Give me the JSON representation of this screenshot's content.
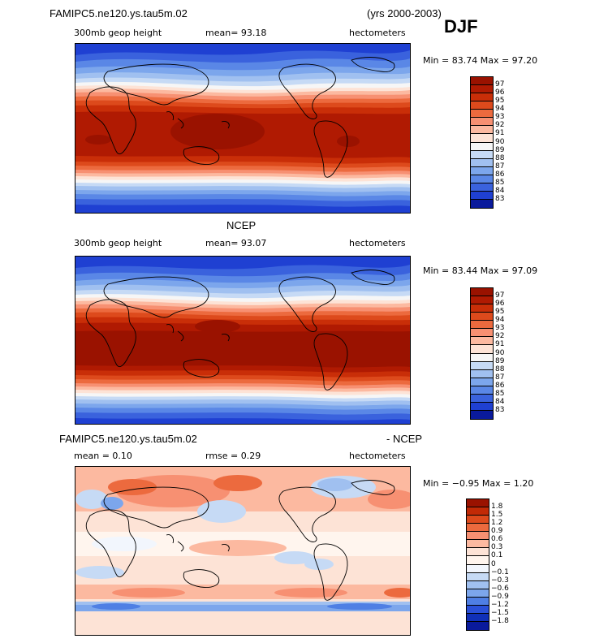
{
  "header": {
    "model": "FAMIPC5.ne120.ys.tau5m.02",
    "years": "(yrs 2000-2003)",
    "season": "DJF"
  },
  "panels": [
    {
      "title": "",
      "field": "300mb geop height",
      "stat1": "mean=  93.18",
      "stat2": "",
      "units": "hectometers",
      "minmax": "Min =  83.74 Max =  97.20",
      "legend": [
        "97",
        "96",
        "95",
        "94",
        "93",
        "92",
        "91",
        "90",
        "89",
        "88",
        "87",
        "86",
        "85",
        "84",
        "83"
      ],
      "colors": [
        "#9a1200",
        "#b01a02",
        "#c92e08",
        "#dd4a1c",
        "#ec6a3e",
        "#f79072",
        "#fcb9a0",
        "#fde3d6",
        "#f6f6f6",
        "#c6daf5",
        "#a0c0f0",
        "#7ca6ec",
        "#5a87e6",
        "#3a62dd",
        "#1f40d2",
        "#0a1a9c"
      ]
    },
    {
      "title": "NCEP",
      "field": "300mb geop height",
      "stat1": "mean=  93.07",
      "stat2": "",
      "units": "hectometers",
      "minmax": "Min =  83.44 Max =  97.09",
      "legend": [
        "97",
        "96",
        "95",
        "94",
        "93",
        "92",
        "91",
        "90",
        "89",
        "88",
        "87",
        "86",
        "85",
        "84",
        "83"
      ],
      "colors": [
        "#9a1200",
        "#b01a02",
        "#c92e08",
        "#dd4a1c",
        "#ec6a3e",
        "#f79072",
        "#fcb9a0",
        "#fde3d6",
        "#f6f6f6",
        "#c6daf5",
        "#a0c0f0",
        "#7ca6ec",
        "#5a87e6",
        "#3a62dd",
        "#1f40d2",
        "#0a1a9c"
      ]
    },
    {
      "title": "FAMIPC5.ne120.ys.tau5m.02",
      "title_right": "- NCEP",
      "field": "",
      "stat1": "mean =    0.10",
      "stat2": "rmse =    0.29",
      "units": "hectometers",
      "minmax": "Min =  −0.95 Max =    1.20",
      "legend": [
        "1.8",
        "1.5",
        "1.2",
        "0.9",
        "0.6",
        "0.3",
        "0.1",
        "0",
        "−0.1",
        "−0.3",
        "−0.6",
        "−0.9",
        "−1.2",
        "−1.5",
        "−1.8"
      ],
      "colors": [
        "#9a1200",
        "#c22a06",
        "#dd4a1c",
        "#ec6a3e",
        "#f79072",
        "#fcb9a0",
        "#fde3d6",
        "#fff5ee",
        "#f2f6fd",
        "#c6daf5",
        "#a0c0f0",
        "#7ca6ec",
        "#4f7fe4",
        "#2a50d8",
        "#1030b8",
        "#0a1a9c"
      ]
    }
  ]
}
